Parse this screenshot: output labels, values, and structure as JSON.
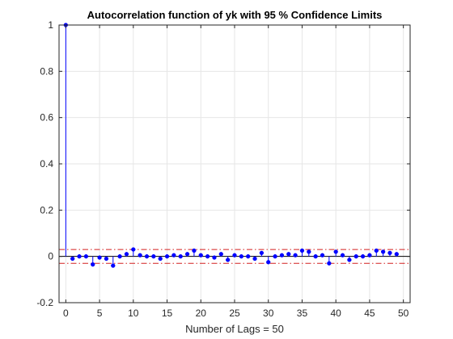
{
  "chart_data": {
    "type": "stem",
    "title": "Autocorrelation function of yk with 95 % Confidence Limits",
    "xlabel": "Number of Lags = 50",
    "ylabel": "",
    "xlim": [
      -1,
      51
    ],
    "ylim": [
      -0.2,
      1
    ],
    "xticks": [
      0,
      5,
      10,
      15,
      20,
      25,
      30,
      35,
      40,
      45,
      50
    ],
    "yticks": [
      -0.2,
      0,
      0.2,
      0.4,
      0.6,
      0.8,
      1
    ],
    "x_tick_labels": [
      "0",
      "5",
      "10",
      "15",
      "20",
      "25",
      "30",
      "35",
      "40",
      "45",
      "50"
    ],
    "y_tick_labels": [
      "-0.2",
      "0",
      "0.2",
      "0.4",
      "0.6",
      "0.8",
      "1"
    ],
    "grid": true,
    "lags": [
      0,
      1,
      2,
      3,
      4,
      5,
      6,
      7,
      8,
      9,
      10,
      11,
      12,
      13,
      14,
      15,
      16,
      17,
      18,
      19,
      20,
      21,
      22,
      23,
      24,
      25,
      26,
      27,
      28,
      29,
      30,
      31,
      32,
      33,
      34,
      35,
      36,
      37,
      38,
      39,
      40,
      41,
      42,
      43,
      44,
      45,
      46,
      47,
      48,
      49
    ],
    "values": [
      1.0,
      -0.01,
      0.0,
      0.0,
      -0.035,
      -0.005,
      -0.01,
      -0.04,
      0.0,
      0.01,
      0.03,
      0.005,
      0.0,
      0.0,
      -0.01,
      0.0,
      0.005,
      0.0,
      0.01,
      0.025,
      0.005,
      0.0,
      -0.005,
      0.01,
      -0.015,
      0.005,
      0.0,
      0.0,
      -0.01,
      0.015,
      -0.025,
      0.0,
      0.005,
      0.01,
      0.005,
      0.025,
      0.02,
      0.0,
      0.005,
      -0.03,
      0.02,
      0.005,
      -0.015,
      0.0,
      0.0,
      0.005,
      0.025,
      0.02,
      0.015,
      0.01
    ],
    "confidence_limits": [
      0.03,
      -0.03
    ],
    "colors": {
      "stem": "#0000ff",
      "confidence": "#d42020",
      "grid": "#e6e6e6",
      "axis": "#262626",
      "zero_line": "#000000"
    }
  }
}
